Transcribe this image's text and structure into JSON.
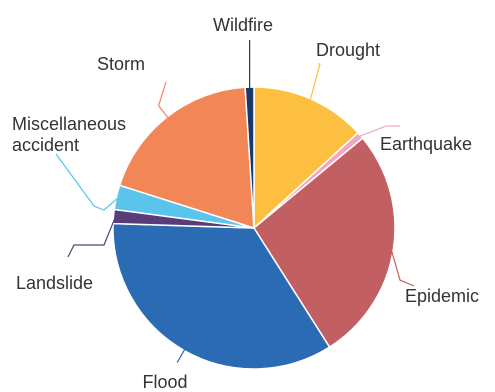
{
  "chart_data": {
    "type": "pie",
    "title": "",
    "start_angle_deg": 0,
    "direction": "clockwise",
    "slices": [
      {
        "label": "Drought",
        "value": 13.2,
        "color": "#FDBF40"
      },
      {
        "label": "Earthquake",
        "value": 0.8,
        "color": "#F4A6C0"
      },
      {
        "label": "Epidemic",
        "value": 27.0,
        "color": "#C25F63"
      },
      {
        "label": "Flood",
        "value": 34.5,
        "color": "#2A6BB4"
      },
      {
        "label": "Landslide",
        "value": 1.6,
        "color": "#5A3C78"
      },
      {
        "label": "Miscellaneous accident",
        "lines": [
          "Miscellaneous",
          "accident"
        ],
        "value": 2.8,
        "color": "#5BC4EC"
      },
      {
        "label": "Storm",
        "value": 19.1,
        "color": "#F38656"
      },
      {
        "label": "Wildfire",
        "value": 1.0,
        "color": "#1B3868"
      }
    ]
  }
}
